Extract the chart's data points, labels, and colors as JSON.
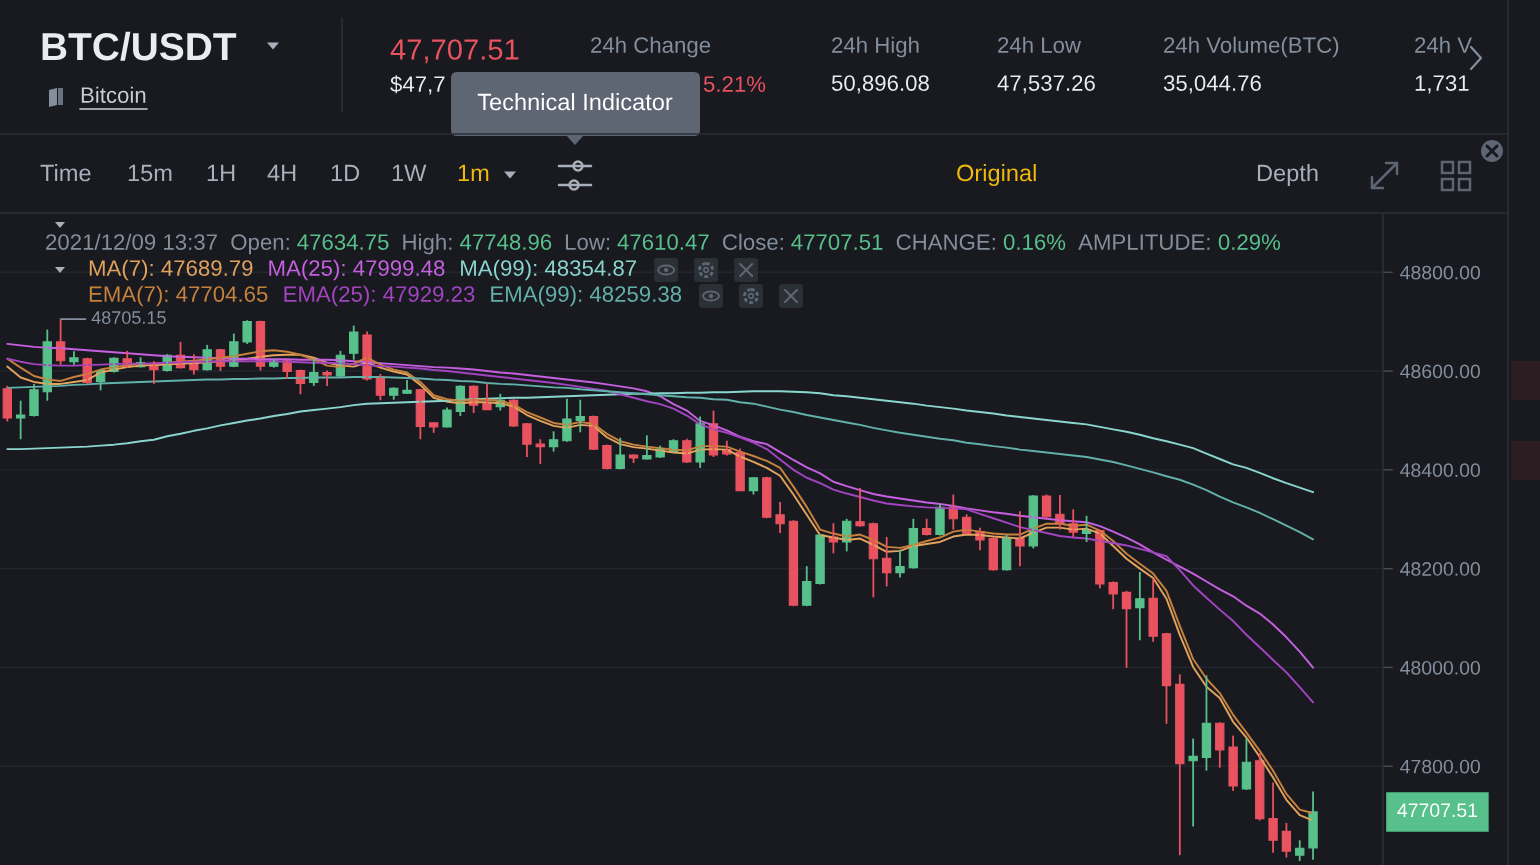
{
  "chart_data": {
    "type": "candlestick",
    "title": "BTC/USDT",
    "subtitle": "Bitcoin",
    "categories": [
      null,
      null,
      null,
      null,
      null,
      null,
      null,
      null,
      null,
      null,
      null,
      null,
      null,
      null,
      null,
      null,
      null,
      null,
      null,
      null,
      null,
      null,
      null,
      null,
      null,
      null,
      null,
      null,
      null,
      null,
      null,
      null,
      null,
      null,
      null,
      null,
      null,
      null,
      null,
      null,
      null,
      null,
      null,
      null,
      null,
      null,
      null,
      null,
      null,
      null,
      null,
      null,
      null,
      null,
      null,
      null,
      null,
      null,
      null,
      null,
      null,
      null,
      null,
      null,
      null,
      null,
      null,
      null,
      null,
      null,
      null,
      null,
      null,
      null,
      null,
      null,
      null,
      null,
      null,
      null,
      null,
      null,
      null,
      null,
      null,
      null,
      null,
      null,
      null,
      null,
      null,
      null,
      null,
      null,
      null,
      null,
      null,
      null,
      null
    ],
    "ohlc": [
      [
        48564,
        48570,
        48498,
        48505
      ],
      [
        48505,
        48540,
        48462,
        48511
      ],
      [
        48510,
        48574,
        48508,
        48562
      ],
      [
        48558,
        48684,
        48540,
        48659
      ],
      [
        48659,
        48705.15,
        48613,
        48621
      ],
      [
        48619,
        48640,
        48613,
        48627
      ],
      [
        48625,
        48627,
        48574,
        48577
      ],
      [
        48579,
        48603,
        48561,
        48601
      ],
      [
        48599,
        48628,
        48597,
        48626
      ],
      [
        48625,
        48641,
        48607,
        48609
      ],
      [
        48609,
        48628,
        48607,
        48617
      ],
      [
        48613,
        48620,
        48574,
        48603
      ],
      [
        48601,
        48634,
        48599,
        48632
      ],
      [
        48632,
        48659,
        48605,
        48607
      ],
      [
        48613,
        48634,
        48593,
        48603
      ],
      [
        48603,
        48653,
        48601,
        48643
      ],
      [
        48643,
        48645,
        48600,
        48610
      ],
      [
        48610,
        48676,
        48608,
        48659
      ],
      [
        48659,
        48703,
        48655,
        48700
      ],
      [
        48700,
        48702,
        48601,
        48610
      ],
      [
        48610,
        48624,
        48607,
        48621
      ],
      [
        48621,
        48623,
        48585,
        48599
      ],
      [
        48601,
        48603,
        48553,
        48575
      ],
      [
        48577,
        48625,
        48570,
        48597
      ],
      [
        48597,
        48601,
        48570,
        48592
      ],
      [
        48590,
        48641,
        48586,
        48632
      ],
      [
        48636,
        48692,
        48623,
        48679
      ],
      [
        48673,
        48680,
        48581,
        48584
      ],
      [
        48587,
        48594,
        48541,
        48551
      ],
      [
        48551,
        48567,
        48542,
        48565
      ],
      [
        48555,
        48582,
        48554,
        48561
      ],
      [
        48562,
        48564,
        48462,
        48488
      ],
      [
        48495,
        48496,
        48475,
        48487
      ],
      [
        48487,
        48526,
        48486,
        48521
      ],
      [
        48518,
        48571,
        48509,
        48569
      ],
      [
        48569,
        48571,
        48515,
        48531
      ],
      [
        48536,
        48575,
        48521,
        48522
      ],
      [
        48528,
        48554,
        48520,
        48541
      ],
      [
        48541,
        48543,
        48487,
        48489
      ],
      [
        48493,
        48495,
        48426,
        48452
      ],
      [
        48452,
        48462,
        48412,
        48447
      ],
      [
        48447,
        48478,
        48437,
        48461
      ],
      [
        48459,
        48544,
        48457,
        48503
      ],
      [
        48500,
        48542,
        48476,
        48508
      ],
      [
        48508,
        48510,
        48440,
        48442
      ],
      [
        48449,
        48451,
        48401,
        48403
      ],
      [
        48403,
        48465,
        48401,
        48430
      ],
      [
        48430,
        48431,
        48414,
        48424
      ],
      [
        48422,
        48470,
        48421,
        48429
      ],
      [
        48426,
        48449,
        48424,
        48442
      ],
      [
        48437,
        48462,
        48436,
        48459
      ],
      [
        48459,
        48463,
        48414,
        48416
      ],
      [
        48416,
        48508,
        48404,
        48493
      ],
      [
        48493,
        48520,
        48426,
        48430
      ],
      [
        48441,
        48459,
        48429,
        48432
      ],
      [
        48435,
        48443,
        48357,
        48358
      ],
      [
        48358,
        48385,
        48350,
        48384
      ],
      [
        48384,
        48386,
        48302,
        48304
      ],
      [
        48309,
        48335,
        48272,
        48291
      ],
      [
        48296,
        48298,
        48124,
        48126
      ],
      [
        48126,
        48205,
        48124,
        48174
      ],
      [
        48170,
        48270,
        48168,
        48268
      ],
      [
        48264,
        48292,
        48231,
        48254
      ],
      [
        48254,
        48301,
        48235,
        48296
      ],
      [
        48295,
        48363,
        48285,
        48287
      ],
      [
        48291,
        48293,
        48142,
        48220
      ],
      [
        48221,
        48264,
        48164,
        48192
      ],
      [
        48192,
        48238,
        48182,
        48204
      ],
      [
        48202,
        48301,
        48200,
        48281
      ],
      [
        48281,
        48301,
        48267,
        48269
      ],
      [
        48269,
        48331,
        48267,
        48324
      ],
      [
        48325,
        48350,
        48279,
        48301
      ],
      [
        48304,
        48310,
        48270,
        48272
      ],
      [
        48275,
        48283,
        48237,
        48258
      ],
      [
        48261,
        48263,
        48196,
        48198
      ],
      [
        48198,
        48268,
        48196,
        48261
      ],
      [
        48261,
        48316,
        48205,
        48246
      ],
      [
        48246,
        48349,
        48241,
        48347
      ],
      [
        48347,
        48350,
        48303,
        48305
      ],
      [
        48310,
        48349,
        48279,
        48291
      ],
      [
        48291,
        48320,
        48264,
        48274
      ],
      [
        48271,
        48307,
        48254,
        48279
      ],
      [
        48277,
        48279,
        48160,
        48169
      ],
      [
        48172,
        48174,
        48118,
        48149
      ],
      [
        48152,
        48155,
        47999,
        48119
      ],
      [
        48121,
        48193,
        48055,
        48139
      ],
      [
        48140,
        48180,
        48052,
        48063
      ],
      [
        48068,
        48070,
        47886,
        47963
      ],
      [
        47966,
        47986,
        47620,
        47805
      ],
      [
        47811,
        47856,
        47678,
        47820
      ],
      [
        47818,
        47984,
        47791,
        47887
      ],
      [
        47887,
        47889,
        47797,
        47833
      ],
      [
        47839,
        47862,
        47750,
        47760
      ],
      [
        47754,
        47857,
        47752,
        47808
      ],
      [
        47811,
        47826,
        47690,
        47694
      ],
      [
        47694,
        47767,
        47625,
        47650
      ],
      [
        47668,
        47685,
        47615,
        47628
      ],
      [
        47620,
        47650,
        47608,
        47634
      ],
      [
        47634.75,
        47748.96,
        47610.47,
        47707.51
      ]
    ],
    "colors": [
      "#e9525f",
      "#58c08a",
      "#58c08a",
      "#58c08a",
      "#e9525f",
      "#58c08a",
      "#e9525f",
      "#58c08a",
      "#58c08a",
      "#e9525f",
      "#58c08a",
      "#e9525f",
      "#58c08a",
      "#e9525f",
      "#e9525f",
      "#58c08a",
      "#e9525f",
      "#58c08a",
      "#58c08a",
      "#e9525f",
      "#58c08a",
      "#e9525f",
      "#e9525f",
      "#58c08a",
      "#e9525f",
      "#58c08a",
      "#58c08a",
      "#e9525f",
      "#e9525f",
      "#58c08a",
      "#58c08a",
      "#e9525f",
      "#e9525f",
      "#58c08a",
      "#58c08a",
      "#e9525f",
      "#e9525f",
      "#58c08a",
      "#e9525f",
      "#e9525f",
      "#e9525f",
      "#58c08a",
      "#58c08a",
      "#58c08a",
      "#e9525f",
      "#e9525f",
      "#58c08a",
      "#e9525f",
      "#58c08a",
      "#58c08a",
      "#58c08a",
      "#e9525f",
      "#58c08a",
      "#e9525f",
      "#e9525f",
      "#e9525f",
      "#58c08a",
      "#e9525f",
      "#e9525f",
      "#e9525f",
      "#58c08a",
      "#58c08a",
      "#e9525f",
      "#58c08a",
      "#e9525f",
      "#e9525f",
      "#e9525f",
      "#58c08a",
      "#58c08a",
      "#e9525f",
      "#58c08a",
      "#e9525f",
      "#e9525f",
      "#e9525f",
      "#e9525f",
      "#58c08a",
      "#e9525f",
      "#58c08a",
      "#e9525f",
      "#e9525f",
      "#e9525f",
      "#58c08a",
      "#e9525f",
      "#e9525f",
      "#e9525f",
      "#58c08a",
      "#e9525f",
      "#e9525f",
      "#e9525f",
      "#58c08a",
      "#58c08a",
      "#e9525f",
      "#e9525f",
      "#58c08a",
      "#e9525f",
      "#e9525f",
      "#e9525f",
      "#58c08a",
      "#58c08a"
    ],
    "series": [
      {
        "type": "line",
        "name": "MA(7): 47689.79",
        "color": "#e3a35c",
        "values": [
          48609,
          48587,
          48578,
          48574,
          48574,
          48578,
          48582,
          48597,
          48603,
          48608,
          48611,
          48612,
          48613,
          48615,
          48616,
          48618,
          48620,
          48622,
          48625,
          48629,
          48632,
          48633,
          48633,
          48627,
          48617,
          48611,
          48609,
          48617,
          48607,
          48599,
          48593,
          48572,
          48546,
          48538,
          48535,
          48537,
          48537,
          48535,
          48528,
          48511,
          48499,
          48489,
          48485,
          48491,
          48489,
          48466,
          48452,
          48446,
          48443,
          48439,
          48435,
          48433,
          48441,
          48442,
          48441,
          48427,
          48416,
          48404,
          48388,
          48350,
          48309,
          48268,
          48263,
          48258,
          48261,
          48248,
          48234,
          48236,
          48246,
          48250,
          48254,
          48265,
          48269,
          48268,
          48265,
          48263,
          48261,
          48273,
          48283,
          48283,
          48279,
          48281,
          48271,
          48246,
          48220,
          48200,
          48181,
          48139,
          48066,
          48001,
          47961,
          47938,
          47890,
          47858,
          47819,
          47777,
          47732,
          47701,
          47689.79
        ]
      },
      {
        "type": "line",
        "name": "MA(25): 47999.48",
        "color": "#c660e0",
        "values": [
          48655,
          48652,
          48649,
          48647,
          48646,
          48644,
          48642,
          48640,
          48638,
          48636,
          48634,
          48632,
          48630,
          48629,
          48628,
          48627,
          48626,
          48625,
          48625,
          48624,
          48624,
          48624,
          48623,
          48623,
          48623,
          48622,
          48620,
          48618,
          48616,
          48614,
          48612,
          48610,
          48608,
          48607,
          48605,
          48603,
          48600,
          48597,
          48595,
          48592,
          48589,
          48586,
          48583,
          48580,
          48577,
          48573,
          48569,
          48565,
          48559,
          48549,
          48533,
          48520,
          48499,
          48490,
          48480,
          48467,
          48458,
          48452,
          48436,
          48420,
          48405,
          48393,
          48376,
          48367,
          48359,
          48351,
          48346,
          48342,
          48338,
          48334,
          48331,
          48327,
          48322,
          48318,
          48314,
          48311,
          48307,
          48304,
          48301,
          48298,
          48296,
          48294,
          48286,
          48275,
          48263,
          48249,
          48233,
          48218,
          48204,
          48190,
          48174,
          48158,
          48144,
          48125,
          48109,
          48087,
          48061,
          48032,
          47999.48
        ]
      },
      {
        "type": "line",
        "name": "MA(99): 48354.87",
        "color": "#8ad6cf",
        "values": [
          48442,
          48442,
          48443,
          48444,
          48445,
          48446,
          48447,
          48449,
          48451,
          48454,
          48458,
          48461,
          48468,
          48473,
          48479,
          48484,
          48490,
          48495,
          48500,
          48504,
          48509,
          48513,
          48518,
          48521,
          48524,
          48527,
          48531,
          48534,
          48535,
          48536,
          48537,
          48538,
          48539,
          48540,
          48542,
          48543,
          48544,
          48545,
          48546,
          48546,
          48547,
          48548,
          48549,
          48550,
          48551,
          48552,
          48553,
          48554,
          48554,
          48555,
          48555,
          48556,
          48556,
          48557,
          48557,
          48558,
          48559,
          48559,
          48559,
          48558,
          48557,
          48555,
          48551,
          48549,
          48546,
          48543,
          48540,
          48537,
          48534,
          48530,
          48527,
          48524,
          48520,
          48517,
          48514,
          48510,
          48507,
          48504,
          48501,
          48498,
          48495,
          48492,
          48487,
          48482,
          48477,
          48471,
          48464,
          48458,
          48451,
          48444,
          48433,
          48422,
          48411,
          48404,
          48394,
          48383,
          48373,
          48364,
          48354.87
        ]
      },
      {
        "type": "line",
        "name": "EMA(7): 47704.65",
        "color": "#c7813c",
        "values": [
          48625,
          48607,
          48590,
          48583,
          48580,
          48588,
          48594,
          48603,
          48608,
          48612,
          48614,
          48615,
          48617,
          48619,
          48621,
          48624,
          48627,
          48630,
          48635,
          48640,
          48642,
          48639,
          48633,
          48623,
          48611,
          48608,
          48615,
          48627,
          48613,
          48603,
          48597,
          48578,
          48551,
          48543,
          48540,
          48542,
          48542,
          48540,
          48532,
          48517,
          48506,
          48495,
          48491,
          48497,
          48493,
          48473,
          48458,
          48451,
          48447,
          48444,
          48441,
          48439,
          48448,
          48448,
          48447,
          48437,
          48428,
          48418,
          48404,
          48366,
          48325,
          48279,
          48271,
          48265,
          48269,
          48258,
          48244,
          48242,
          48248,
          48256,
          48263,
          48275,
          48279,
          48275,
          48271,
          48269,
          48269,
          48281,
          48291,
          48291,
          48287,
          48289,
          48277,
          48256,
          48230,
          48210,
          48190,
          48155,
          48084,
          48017,
          47977,
          47948,
          47904,
          47868,
          47831,
          47791,
          47744,
          47712,
          47704.65
        ]
      },
      {
        "type": "line",
        "name": "EMA(25): 47929.23",
        "color": "#a244c0",
        "values": [
          48625,
          48619,
          48614,
          48612,
          48611,
          48611,
          48612,
          48613,
          48614,
          48615,
          48615,
          48616,
          48617,
          48618,
          48619,
          48619,
          48620,
          48620,
          48620,
          48620,
          48620,
          48619,
          48618,
          48617,
          48617,
          48616,
          48614,
          48612,
          48610,
          48609,
          48607,
          48605,
          48602,
          48600,
          48597,
          48594,
          48591,
          48588,
          48585,
          48582,
          48579,
          48576,
          48572,
          48568,
          48564,
          48560,
          48553,
          48546,
          48539,
          48533,
          48524,
          48510,
          48492,
          48482,
          48475,
          48466,
          48455,
          48442,
          48421,
          48400,
          48384,
          48373,
          48360,
          48352,
          48345,
          48338,
          48332,
          48329,
          48326,
          48324,
          48323,
          48322,
          48320,
          48311,
          48302,
          48293,
          48284,
          48278,
          48272,
          48266,
          48263,
          48261,
          48256,
          48252,
          48247,
          48240,
          48233,
          48225,
          48197,
          48166,
          48141,
          48117,
          48094,
          48066,
          48041,
          48015,
          47990,
          47960,
          47929.23
        ]
      },
      {
        "type": "line",
        "name": "EMA(99): 48259.38",
        "color": "#62b0aa",
        "values": [
          48566,
          48567,
          48568,
          48569,
          48570,
          48572,
          48573,
          48575,
          48576,
          48577,
          48578,
          48579,
          48580,
          48581,
          48582,
          48583,
          48583,
          48584,
          48584,
          48585,
          48585,
          48586,
          48586,
          48587,
          48587,
          48587,
          48588,
          48588,
          48588,
          48587,
          48586,
          48585,
          48583,
          48582,
          48580,
          48579,
          48576,
          48574,
          48573,
          48571,
          48569,
          48567,
          48566,
          48563,
          48561,
          48559,
          48557,
          48555,
          48553,
          48551,
          48549,
          48547,
          48546,
          48543,
          48542,
          48537,
          48534,
          48528,
          48522,
          48517,
          48511,
          48506,
          48501,
          48496,
          48491,
          48485,
          48480,
          48475,
          48471,
          48467,
          48463,
          48460,
          48455,
          48452,
          48448,
          48445,
          48441,
          48438,
          48435,
          48432,
          48429,
          48426,
          48421,
          48416,
          48409,
          48402,
          48395,
          48387,
          48380,
          48370,
          48359,
          48346,
          48334,
          48324,
          48313,
          48300,
          48287,
          48274,
          48259.38
        ]
      }
    ],
    "ylim": [
      47600,
      48920
    ],
    "yticks": [
      {
        "value": 47800,
        "label": "47800.00"
      },
      {
        "value": 48000,
        "label": "48000.00"
      },
      {
        "value": 48200,
        "label": "48200.00"
      },
      {
        "value": 48400,
        "label": "48400.00"
      },
      {
        "value": 48600,
        "label": "48600.00"
      },
      {
        "value": 48800,
        "label": "48800.00"
      }
    ],
    "grid": "y",
    "tick_labels": "y",
    "annotations": [
      "47,707.51",
      "$47,7",
      "24h Change",
      "5.21%",
      "24h High",
      "50,896.08",
      "24h Low",
      "47,537.26",
      "24h Volume(BTC)",
      "35,044.76",
      "24h V",
      "1,731",
      "Time",
      "15m",
      "1H",
      "4H",
      "1D",
      "1W",
      "1m",
      "Original",
      "Depth",
      "Technical Indicator",
      "2021/12/09 13:37",
      "Open:",
      "47634.75",
      "High:",
      "47748.96",
      "Low:",
      "47610.47",
      "Close:",
      "47707.51",
      "CHANGE:",
      "0.16%",
      "AMPLITUDE:",
      "0.29%",
      "48705.15",
      "47707.51"
    ]
  }
}
